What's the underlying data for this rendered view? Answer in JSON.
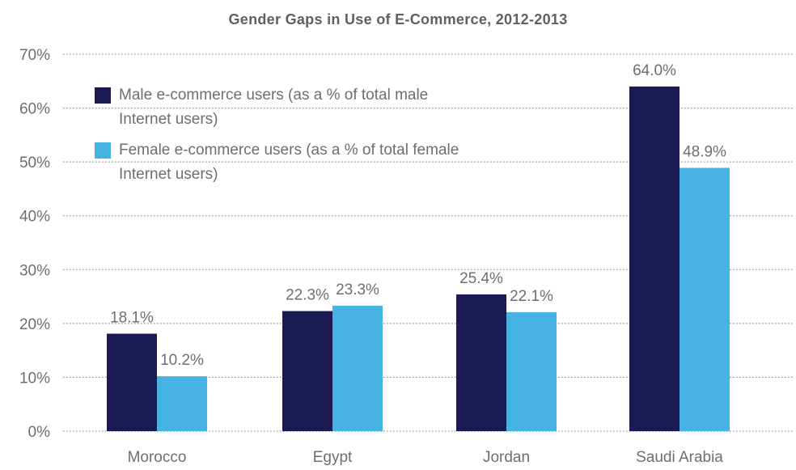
{
  "colors": {
    "male": "#1c1a53",
    "female": "#46b3e3",
    "grid": "#6d6e71",
    "text": "#6d6e71"
  },
  "chart_data": {
    "type": "bar",
    "title": "Gender Gaps in Use of E-Commerce, 2012-2013",
    "xlabel": "",
    "ylabel": "",
    "ylim": [
      0,
      70
    ],
    "yticks": [
      0,
      10,
      20,
      30,
      40,
      50,
      60,
      70
    ],
    "ytick_labels": [
      "0%",
      "10%",
      "20%",
      "30%",
      "40%",
      "50%",
      "60%",
      "70%"
    ],
    "grid": true,
    "legend_position": "top-left",
    "categories": [
      "Morocco",
      "Egypt",
      "Jordan",
      "Saudi Arabia"
    ],
    "series": [
      {
        "name": "Male e-commerce users (as a % of total male Internet users)",
        "values": [
          18.1,
          22.3,
          25.4,
          64.0
        ],
        "labels": [
          "18.1%",
          "22.3%",
          "25.4%",
          "64.0%"
        ]
      },
      {
        "name": "Female e-commerce users (as a % of total female Internet users)",
        "values": [
          10.2,
          23.3,
          22.1,
          48.9
        ],
        "labels": [
          "10.2%",
          "23.3%",
          "22.1%",
          "48.9%"
        ]
      }
    ]
  },
  "legend": {
    "male_line1": "Male e-commerce users (as a % of total male",
    "male_line2": "Internet users)",
    "female_line1": "Female e-commerce users (as a % of total female",
    "female_line2": "Internet users)"
  }
}
